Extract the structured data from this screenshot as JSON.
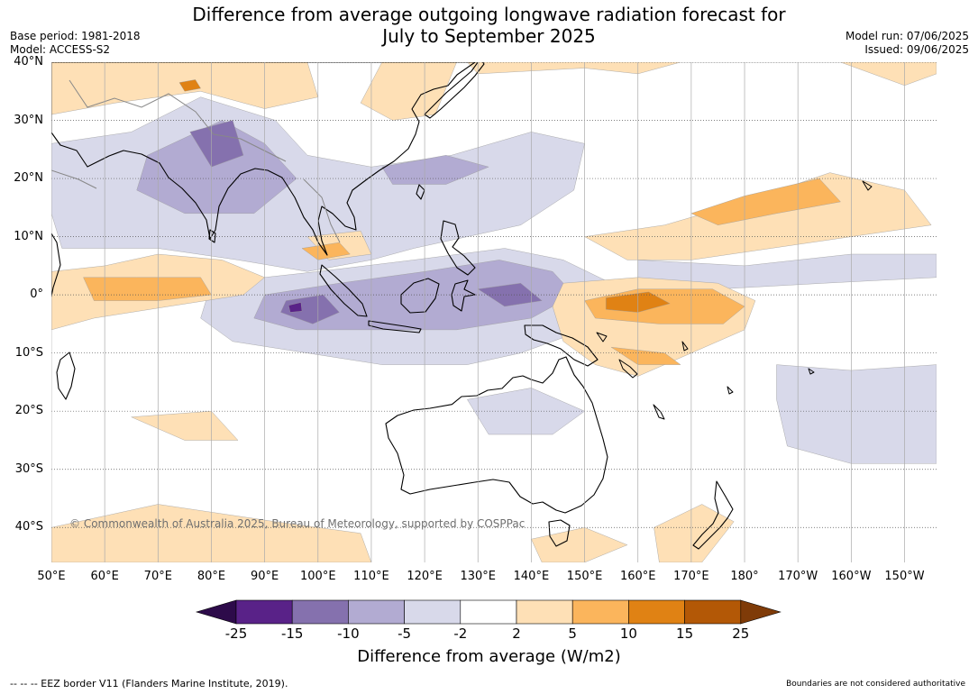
{
  "title_line1": "Difference from average outgoing longwave radiation forecast for",
  "title_line2": "July to September 2025",
  "meta": {
    "base_period": "Base period: 1981-2018",
    "model": "Model: ACCESS-S2",
    "model_run": "Model run: 07/06/2025",
    "issued": "Issued: 09/06/2025"
  },
  "map": {
    "lon_range": [
      50,
      216
    ],
    "lat_range": [
      -46,
      40
    ],
    "lat_labels": [
      "40°N",
      "30°N",
      "20°N",
      "10°N",
      "0°",
      "10°S",
      "20°S",
      "30°S",
      "40°S"
    ],
    "lon_labels": [
      "50°E",
      "60°E",
      "70°E",
      "80°E",
      "90°E",
      "100°E",
      "110°E",
      "120°E",
      "130°E",
      "140°E",
      "150°E",
      "160°E",
      "170°E",
      "180°",
      "170°W",
      "160°W",
      "150°W"
    ],
    "copyright": "© Commonwealth of Australia 2025, Bureau of Meteorology, supported by COSPPac",
    "anomaly_regions": [
      {
        "level": "-5",
        "points": [
          [
            50,
            26
          ],
          [
            65,
            28
          ],
          [
            78,
            34
          ],
          [
            92,
            30
          ],
          [
            98,
            24
          ],
          [
            110,
            22
          ],
          [
            125,
            24
          ],
          [
            140,
            28
          ],
          [
            150,
            26
          ],
          [
            148,
            18
          ],
          [
            138,
            12
          ],
          [
            128,
            10
          ],
          [
            118,
            8
          ],
          [
            110,
            6
          ],
          [
            98,
            4
          ],
          [
            85,
            6
          ],
          [
            70,
            8
          ],
          [
            52,
            8
          ],
          [
            50,
            14
          ]
        ]
      },
      {
        "level": "-5",
        "points": [
          [
            80,
            2
          ],
          [
            100,
            4
          ],
          [
            118,
            6
          ],
          [
            135,
            8
          ],
          [
            146,
            6
          ],
          [
            155,
            2
          ],
          [
            150,
            -6
          ],
          [
            138,
            -10
          ],
          [
            128,
            -12
          ],
          [
            112,
            -12
          ],
          [
            98,
            -10
          ],
          [
            84,
            -8
          ],
          [
            78,
            -4
          ]
        ]
      },
      {
        "level": "-5",
        "points": [
          [
            128,
            -18
          ],
          [
            140,
            -16
          ],
          [
            150,
            -20
          ],
          [
            144,
            -24
          ],
          [
            132,
            -24
          ]
        ]
      },
      {
        "level": "-5",
        "points": [
          [
            186,
            -12
          ],
          [
            200,
            -13
          ],
          [
            216,
            -12
          ],
          [
            216,
            -29
          ],
          [
            200,
            -29
          ],
          [
            188,
            -26
          ],
          [
            186,
            -18
          ]
        ]
      },
      {
        "level": "-5",
        "points": [
          [
            160,
            6
          ],
          [
            180,
            5
          ],
          [
            200,
            7
          ],
          [
            216,
            7
          ],
          [
            216,
            3
          ],
          [
            195,
            2
          ],
          [
            175,
            1
          ],
          [
            160,
            2
          ]
        ]
      },
      {
        "level": "-10",
        "points": [
          [
            68,
            24
          ],
          [
            82,
            30
          ],
          [
            90,
            26
          ],
          [
            96,
            20
          ],
          [
            88,
            14
          ],
          [
            75,
            14
          ],
          [
            66,
            18
          ]
        ]
      },
      {
        "level": "-10",
        "points": [
          [
            90,
            0
          ],
          [
            104,
            2
          ],
          [
            120,
            4
          ],
          [
            134,
            6
          ],
          [
            144,
            4
          ],
          [
            148,
            0
          ],
          [
            140,
            -4
          ],
          [
            126,
            -6
          ],
          [
            110,
            -6
          ],
          [
            96,
            -6
          ],
          [
            88,
            -4
          ]
        ]
      },
      {
        "level": "-10",
        "points": [
          [
            112,
            22
          ],
          [
            124,
            24
          ],
          [
            132,
            22
          ],
          [
            124,
            19
          ],
          [
            114,
            19
          ]
        ]
      },
      {
        "level": "-15",
        "points": [
          [
            76,
            28
          ],
          [
            84,
            30
          ],
          [
            86,
            24
          ],
          [
            80,
            22
          ]
        ]
      },
      {
        "level": "-15",
        "points": [
          [
            94,
            -1
          ],
          [
            101,
            0
          ],
          [
            104,
            -3
          ],
          [
            99,
            -5
          ],
          [
            93,
            -3
          ]
        ]
      },
      {
        "level": "-15",
        "points": [
          [
            130,
            1
          ],
          [
            138,
            2
          ],
          [
            142,
            -1
          ],
          [
            135,
            -2
          ]
        ]
      },
      {
        "level": "-25",
        "points": [
          [
            94.5,
            -1.8
          ],
          [
            96.8,
            -1.3
          ],
          [
            97,
            -2.8
          ],
          [
            94.8,
            -3
          ]
        ]
      },
      {
        "level": "5",
        "points": [
          [
            66,
            40
          ],
          [
            98,
            40
          ],
          [
            100,
            34
          ],
          [
            90,
            32
          ],
          [
            78,
            35
          ],
          [
            62,
            33
          ],
          [
            50,
            31
          ],
          [
            50,
            40
          ]
        ]
      },
      {
        "level": "5",
        "points": [
          [
            112,
            40
          ],
          [
            126,
            40
          ],
          [
            122,
            31
          ],
          [
            114,
            30
          ],
          [
            108,
            33
          ]
        ]
      },
      {
        "level": "5",
        "points": [
          [
            130,
            38
          ],
          [
            150,
            39
          ],
          [
            160,
            38
          ],
          [
            168,
            40
          ],
          [
            198,
            40
          ],
          [
            210,
            36
          ],
          [
            216,
            38
          ],
          [
            216,
            40
          ],
          [
            128,
            40
          ]
        ]
      },
      {
        "level": "5",
        "points": [
          [
            50,
            4
          ],
          [
            60,
            5
          ],
          [
            70,
            7
          ],
          [
            82,
            6
          ],
          [
            90,
            3
          ],
          [
            86,
            0
          ],
          [
            72,
            -2
          ],
          [
            58,
            -4
          ],
          [
            50,
            -6
          ]
        ]
      },
      {
        "level": "5",
        "points": [
          [
            146,
            2
          ],
          [
            160,
            3
          ],
          [
            175,
            2
          ],
          [
            182,
            -1
          ],
          [
            180,
            -6
          ],
          [
            170,
            -10
          ],
          [
            160,
            -14
          ],
          [
            152,
            -12
          ],
          [
            146,
            -8
          ],
          [
            144,
            -2
          ]
        ]
      },
      {
        "level": "5",
        "points": [
          [
            150,
            10
          ],
          [
            165,
            12
          ],
          [
            180,
            16
          ],
          [
            196,
            21
          ],
          [
            210,
            18
          ],
          [
            215,
            12
          ],
          [
            200,
            10
          ],
          [
            185,
            8
          ],
          [
            170,
            6
          ],
          [
            158,
            6
          ]
        ]
      },
      {
        "level": "5",
        "points": [
          [
            50,
            -40
          ],
          [
            70,
            -36
          ],
          [
            92,
            -39
          ],
          [
            108,
            -41
          ],
          [
            110,
            -46
          ],
          [
            50,
            -46
          ]
        ]
      },
      {
        "level": "5",
        "points": [
          [
            65,
            -21
          ],
          [
            80,
            -20
          ],
          [
            85,
            -25
          ],
          [
            75,
            -25
          ]
        ]
      },
      {
        "level": "5",
        "points": [
          [
            140,
            -42
          ],
          [
            150,
            -40
          ],
          [
            158,
            -43
          ],
          [
            150,
            -46
          ],
          [
            142,
            -46
          ]
        ]
      },
      {
        "level": "5",
        "points": [
          [
            163,
            -40
          ],
          [
            172,
            -36
          ],
          [
            178,
            -39
          ],
          [
            172,
            -46
          ],
          [
            164,
            -46
          ]
        ]
      },
      {
        "level": "5",
        "points": [
          [
            98,
            10
          ],
          [
            108,
            11
          ],
          [
            110,
            7
          ],
          [
            102,
            6
          ]
        ]
      },
      {
        "level": "10",
        "points": [
          [
            56,
            3
          ],
          [
            66,
            3
          ],
          [
            78,
            3
          ],
          [
            80,
            0
          ],
          [
            70,
            -1
          ],
          [
            58,
            -1
          ]
        ]
      },
      {
        "level": "10",
        "points": [
          [
            150,
            -1
          ],
          [
            160,
            1
          ],
          [
            174,
            1
          ],
          [
            180,
            -2
          ],
          [
            176,
            -5
          ],
          [
            164,
            -5
          ],
          [
            152,
            -4
          ]
        ]
      },
      {
        "level": "10",
        "points": [
          [
            170,
            14
          ],
          [
            180,
            17
          ],
          [
            194,
            20
          ],
          [
            198,
            16
          ],
          [
            186,
            14
          ],
          [
            175,
            12
          ]
        ]
      },
      {
        "level": "10",
        "points": [
          [
            155,
            -9
          ],
          [
            165,
            -10
          ],
          [
            168,
            -12
          ],
          [
            160,
            -12
          ]
        ]
      },
      {
        "level": "10",
        "points": [
          [
            97,
            8
          ],
          [
            104,
            9
          ],
          [
            106,
            7
          ],
          [
            100,
            6
          ]
        ]
      },
      {
        "level": "15",
        "points": [
          [
            154,
            -0.5
          ],
          [
            162,
            0.5
          ],
          [
            166,
            -1.5
          ],
          [
            160,
            -3
          ],
          [
            154,
            -2.5
          ]
        ]
      },
      {
        "level": "15",
        "points": [
          [
            74,
            36.5
          ],
          [
            77,
            37
          ],
          [
            78,
            35.5
          ],
          [
            75,
            35
          ]
        ]
      }
    ]
  },
  "colorbar": {
    "ticks": [
      "-25",
      "-15",
      "-10",
      "-5",
      "-2",
      "2",
      "5",
      "10",
      "15",
      "25"
    ],
    "levels": [
      {
        "range": "< -25",
        "color": "#2d0b4a"
      },
      {
        "range": "-25 to -15",
        "color": "#592288"
      },
      {
        "range": "-15 to -10",
        "color": "#8571ae"
      },
      {
        "range": "-10 to -5",
        "color": "#b2abd2"
      },
      {
        "range": "-5 to -2",
        "color": "#d8d9ea"
      },
      {
        "range": "-2 to 2",
        "color": "#ffffff"
      },
      {
        "range": "2 to 5",
        "color": "#fee0b6"
      },
      {
        "range": "5 to 10",
        "color": "#fbb55c"
      },
      {
        "range": "10 to 15",
        "color": "#e08214"
      },
      {
        "range": "15 to 25",
        "color": "#b35806"
      },
      {
        "range": "> 25",
        "color": "#7f3b08"
      }
    ],
    "label": "Difference from average (W/m2)"
  },
  "footer": {
    "left": "--  --  -- EEZ border V11 (Flanders Marine Institute, 2019).",
    "right": "Boundaries are not considered authoritative"
  }
}
